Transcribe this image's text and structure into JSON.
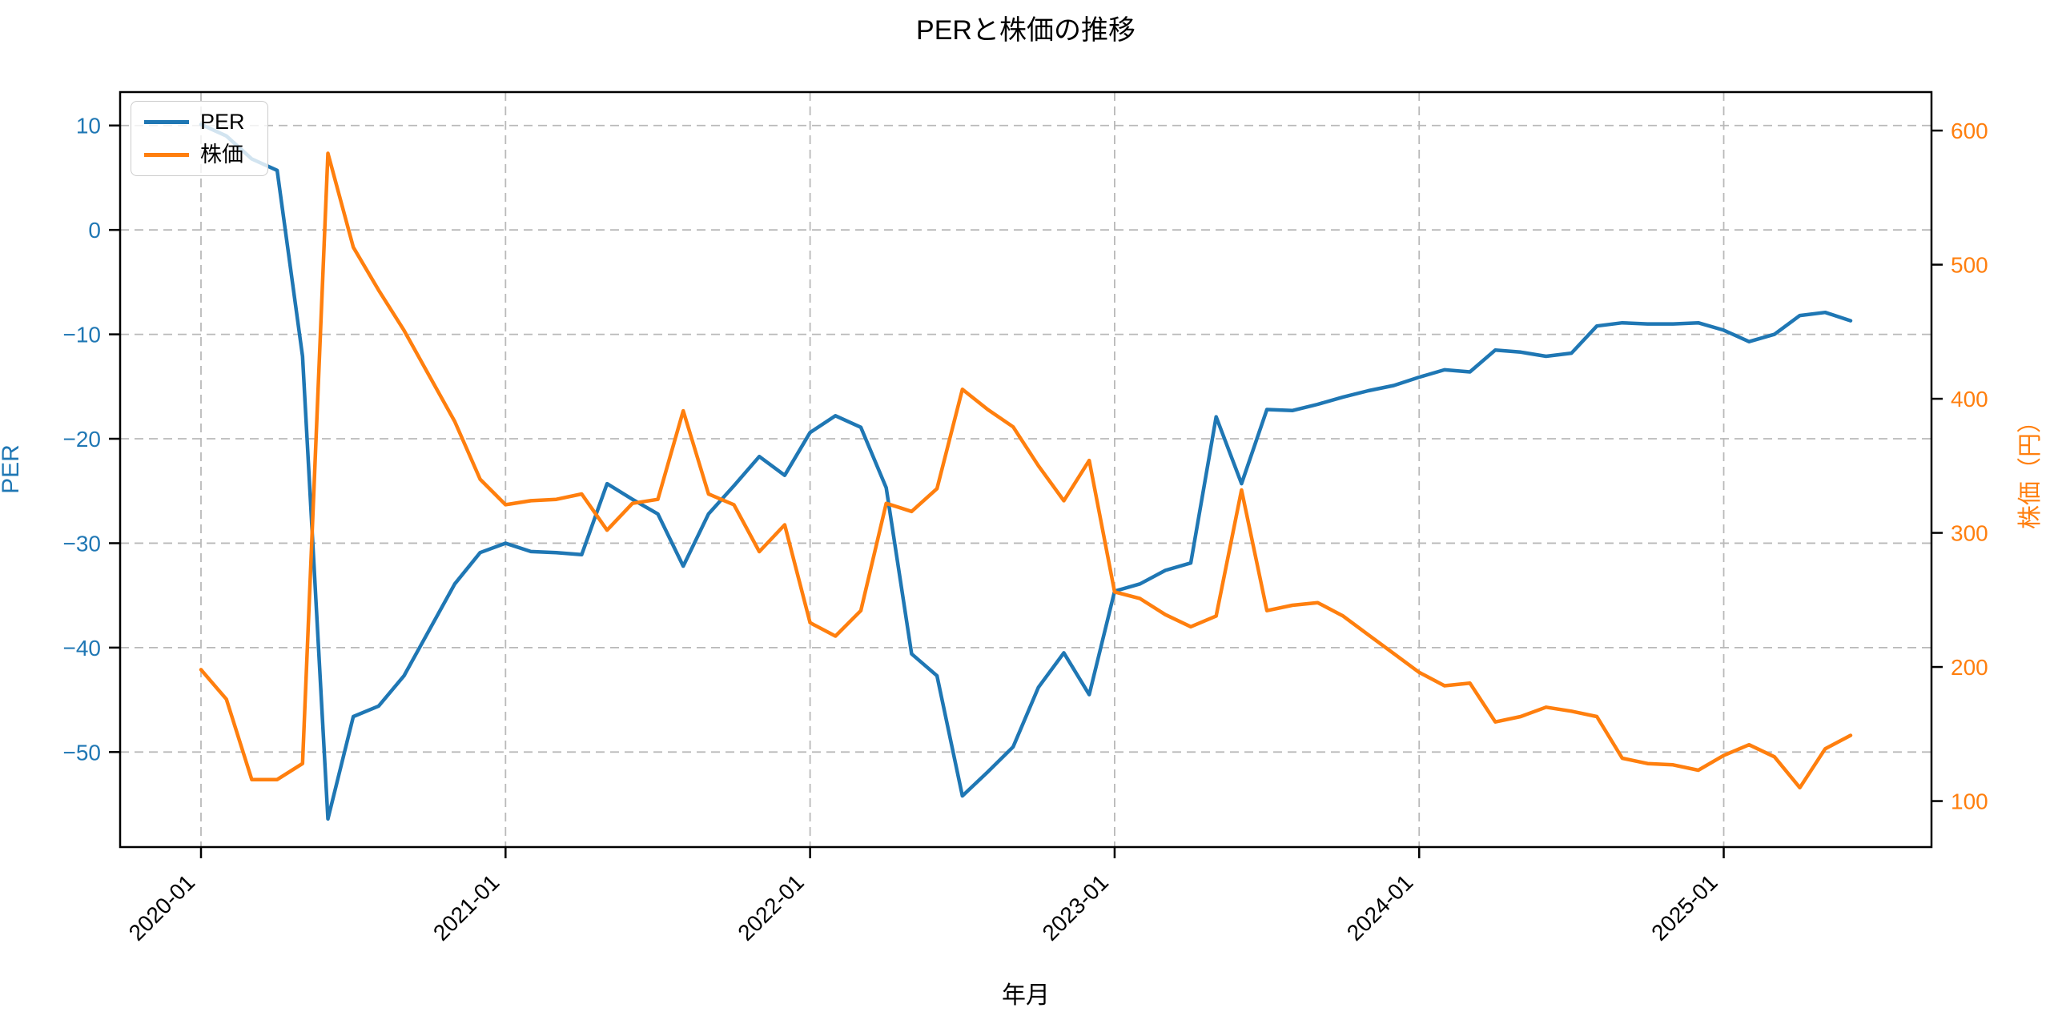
{
  "title": "PERと株価の推移",
  "legend": {
    "items": [
      {
        "label": "PER",
        "color": "#1f77b4"
      },
      {
        "label": "株価",
        "color": "#ff7f0e"
      }
    ]
  },
  "chart_data": {
    "type": "line",
    "title": "PERと株価の推移",
    "xlabel": "年月",
    "ylabel_left": "PER",
    "ylabel_right": "株価（円）",
    "grid": true,
    "legend_position": "upper-left",
    "x_tick_labels": [
      "2020-01",
      "2021-01",
      "2022-01",
      "2023-01",
      "2024-01",
      "2025-01"
    ],
    "y_left_ticks": [
      10,
      0,
      -10,
      -20,
      -30,
      -40,
      -50
    ],
    "y_right_ticks": [
      600,
      500,
      400,
      300,
      200,
      100
    ],
    "ylim_left": [
      -59.1,
      13.2
    ],
    "ylim_right": [
      65.7,
      628.7
    ],
    "x": [
      "2020-01",
      "2020-02",
      "2020-03",
      "2020-04",
      "2020-05",
      "2020-06",
      "2020-07",
      "2020-08",
      "2020-09",
      "2020-10",
      "2020-11",
      "2020-12",
      "2021-01",
      "2021-02",
      "2021-03",
      "2021-04",
      "2021-05",
      "2021-06",
      "2021-07",
      "2021-08",
      "2021-09",
      "2021-10",
      "2021-11",
      "2021-12",
      "2022-01",
      "2022-02",
      "2022-03",
      "2022-04",
      "2022-05",
      "2022-06",
      "2022-07",
      "2022-08",
      "2022-09",
      "2022-10",
      "2022-11",
      "2022-12",
      "2023-01",
      "2023-02",
      "2023-03",
      "2023-04",
      "2023-05",
      "2023-06",
      "2023-07",
      "2023-08",
      "2023-09",
      "2023-10",
      "2023-11",
      "2023-12",
      "2024-01",
      "2024-02",
      "2024-03",
      "2024-04",
      "2024-05",
      "2024-06",
      "2024-07",
      "2024-08",
      "2024-09",
      "2024-10",
      "2024-11",
      "2024-12",
      "2025-01",
      "2025-02",
      "2025-03",
      "2025-04",
      "2025-05",
      "2025-06"
    ],
    "series": [
      {
        "name": "PER",
        "axis": "left",
        "color": "#1f77b4",
        "values": [
          10.1,
          9.0,
          6.8,
          5.7,
          -12.1,
          -56.4,
          -46.6,
          -45.6,
          -42.7,
          -38.3,
          -33.9,
          -30.9,
          -30.0,
          -30.8,
          -30.9,
          -31.1,
          -24.3,
          -25.8,
          -27.2,
          -32.2,
          -27.2,
          -24.5,
          -21.7,
          -23.5,
          -19.4,
          -17.8,
          -18.9,
          -24.7,
          -40.6,
          -42.7,
          -54.2,
          -51.9,
          -49.5,
          -43.8,
          -40.5,
          -44.5,
          -34.6,
          -33.9,
          -32.6,
          -31.9,
          -17.9,
          -24.3,
          -17.2,
          -17.3,
          -16.7,
          -16.0,
          -15.4,
          -14.9,
          -14.1,
          -13.4,
          -13.6,
          -11.5,
          -11.7,
          -12.1,
          -11.8,
          -9.2,
          -8.9,
          -9.0,
          -9.0,
          -8.9,
          -9.6,
          -10.7,
          -10.0,
          -8.2,
          -7.9,
          -8.7
        ]
      },
      {
        "name": "株価",
        "axis": "right",
        "color": "#ff7f0e",
        "values": [
          198,
          176,
          116,
          116,
          128,
          583,
          513,
          481,
          451,
          417,
          383,
          340,
          321,
          324,
          325,
          329,
          302,
          322,
          325,
          391,
          329,
          321,
          286,
          306,
          233,
          223,
          242,
          322,
          316,
          333,
          407,
          392,
          379,
          350,
          324,
          354,
          256,
          251,
          239,
          230,
          238,
          332,
          242,
          246,
          248,
          238,
          224,
          210,
          196,
          186,
          188,
          159,
          163,
          170,
          167,
          163,
          132,
          128,
          127,
          123,
          134,
          142,
          133,
          110,
          139,
          149
        ]
      }
    ]
  }
}
